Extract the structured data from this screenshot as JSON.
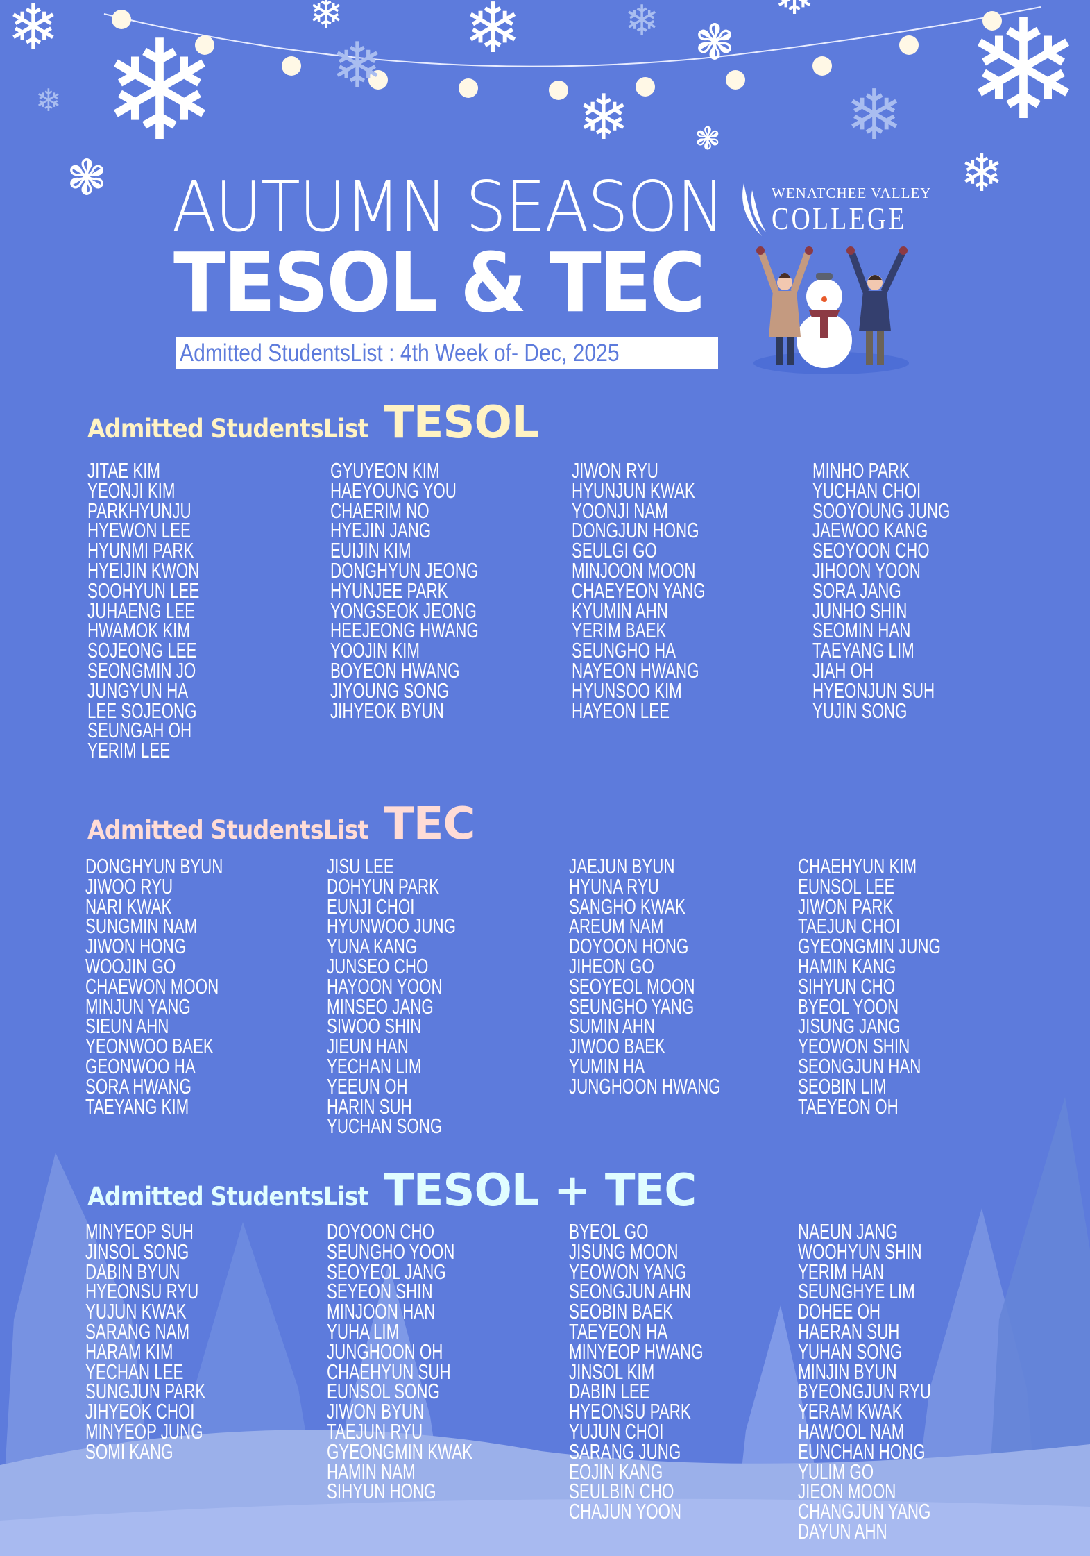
{
  "header": {
    "title_line1": "AUTUMN SEASON",
    "title_line2": "TESOL & TEC",
    "subtitle": "Admitted StudentsList : 4th Week of- Dec, 2025"
  },
  "logo": {
    "top": "WENATCHEE VALLEY",
    "main": "COLLEGE"
  },
  "colors": {
    "background": "#5d7bdc",
    "tesol_heading": "#fff3c4",
    "tec_heading": "#ffdcd6",
    "combo_heading": "#e0fdff"
  },
  "sections": [
    {
      "label": "Admitted StudentsList",
      "program": "TESOL",
      "columns": [
        [
          "JITAE KIM",
          "YEONJI KIM",
          "PARKHYUNJU",
          "HYEWON LEE",
          "HYUNMI PARK",
          "HYEIJIN KWON",
          "SOOHYUN LEE",
          "JUHAENG LEE",
          "HWAMOK KIM",
          "SOJEONG LEE",
          "SEONGMIN JO",
          "JUNGYUN HA",
          "LEE SOJEONG",
          "SEUNGAH OH",
          "YERIM LEE"
        ],
        [
          "GYUYEON KIM",
          "HAEYOUNG YOU",
          "CHAERIM NO",
          "HYEJIN JANG",
          "EUIJIN KIM",
          "DONGHYUN JEONG",
          "HYUNJEE PARK",
          "YONGSEOK JEONG",
          "HEEJEONG HWANG",
          "YOOJIN KIM",
          "BOYEON HWANG",
          "JIYOUNG SONG",
          "JIHYEOK BYUN"
        ],
        [
          "JIWON RYU",
          "HYUNJUN KWAK",
          "YOONJI NAM",
          "DONGJUN HONG",
          "SEULGI GO",
          "MINJOON MOON",
          "CHAEYEON YANG",
          "KYUMIN AHN",
          "YERIM BAEK",
          "SEUNGHO HA",
          "NAYEON HWANG",
          "HYUNSOO KIM",
          "HAYEON LEE"
        ],
        [
          "MINHO PARK",
          "YUCHAN CHOI",
          "SOOYOUNG JUNG",
          "JAEWOO KANG",
          "SEOYOON CHO",
          "JIHOON YOON",
          "SORA JANG",
          "JUNHO SHIN",
          "SEOMIN HAN",
          "TAEYANG LIM",
          "JIAH OH",
          "HYEONJUN SUH",
          "YUJIN SONG"
        ]
      ]
    },
    {
      "label": "Admitted StudentsList",
      "program": "TEC",
      "columns": [
        [
          "DONGHYUN BYUN",
          "JIWOO RYU",
          "NARI KWAK",
          "SUNGMIN NAM",
          "JIWON HONG",
          "WOOJIN GO",
          "CHAEWON MOON",
          "MINJUN YANG",
          "SIEUN AHN",
          "YEONWOO BAEK",
          "GEONWOO HA",
          "SORA HWANG",
          "TAEYANG KIM"
        ],
        [
          "JISU LEE",
          "DOHYUN PARK",
          "EUNJI CHOI",
          "HYUNWOO JUNG",
          "YUNA KANG",
          "JUNSEO CHO",
          "HAYOON YOON",
          "MINSEO JANG",
          "SIWOO SHIN",
          "JIEUN HAN",
          "YECHAN LIM",
          "YEEUN OH",
          "HARIN SUH",
          "YUCHAN SONG"
        ],
        [
          "JAEJUN BYUN",
          "HYUNA RYU",
          "SANGHO KWAK",
          "AREUM NAM",
          "DOYOON HONG",
          "JIHEON GO",
          "SEOYEOL MOON",
          "SEUNGHO YANG",
          "SUMIN AHN",
          "JIWOO BAEK",
          "YUMIN HA",
          "JUNGHOON HWANG"
        ],
        [
          "CHAEHYUN KIM",
          "EUNSOL LEE",
          "JIWON PARK",
          "TAEJUN CHOI",
          "GYEONGMIN JUNG",
          "HAMIN KANG",
          "SIHYUN CHO",
          "BYEOL YOON",
          "JISUNG JANG",
          "YEOWON SHIN",
          "SEONGJUN HAN",
          "SEOBIN LIM",
          "TAEYEON OH"
        ]
      ]
    },
    {
      "label": "Admitted StudentsList",
      "program": "TESOL + TEC",
      "columns": [
        [
          "MINYEOP SUH",
          "JINSOL SONG",
          "DABIN BYUN",
          "HYEONSU RYU",
          "YUJUN KWAK",
          "SARANG NAM",
          "HARAM KIM",
          "YECHAN LEE",
          "SUNGJUN PARK",
          "JIHYEOK CHOI",
          "MINYEOP JUNG",
          "SOMI KANG"
        ],
        [
          "DOYOON CHO",
          "SEUNGHO YOON",
          "SEOYEOL JANG",
          "SEYEON SHIN",
          "MINJOON HAN",
          "YUHA LIM",
          "JUNGHOON OH",
          "CHAEHYUN SUH",
          "EUNSOL SONG",
          "JIWON BYUN",
          "TAEJUN RYU",
          "GYEONGMIN KWAK",
          "HAMIN NAM",
          "SIHYUN HONG"
        ],
        [
          "BYEOL GO",
          "JISUNG MOON",
          "YEOWON YANG",
          "SEONGJUN AHN",
          "SEOBIN BAEK",
          "TAEYEON HA",
          "MINYEOP HWANG",
          "JINSOL KIM",
          "DABIN LEE",
          "HYEONSU PARK",
          "YUJUN CHOI",
          "SARANG JUNG",
          "EOJIN KANG",
          "SEULBIN CHO",
          "CHAJUN YOON"
        ],
        [
          "NAEUN JANG",
          "WOOHYUN SHIN",
          "YERIM HAN",
          "SEUNGHYE LIM",
          "DOHEE OH",
          "HAERAN SUH",
          "YUHAN SONG",
          "MINJIN BYUN",
          "BYEONGJUN RYU",
          "YERAM KWAK",
          "HAWOOL NAM",
          "EUNCHAN HONG",
          "YULIM GO",
          "JIEON MOON",
          "CHANGJUN YANG",
          "DAYUN AHN"
        ]
      ]
    }
  ]
}
